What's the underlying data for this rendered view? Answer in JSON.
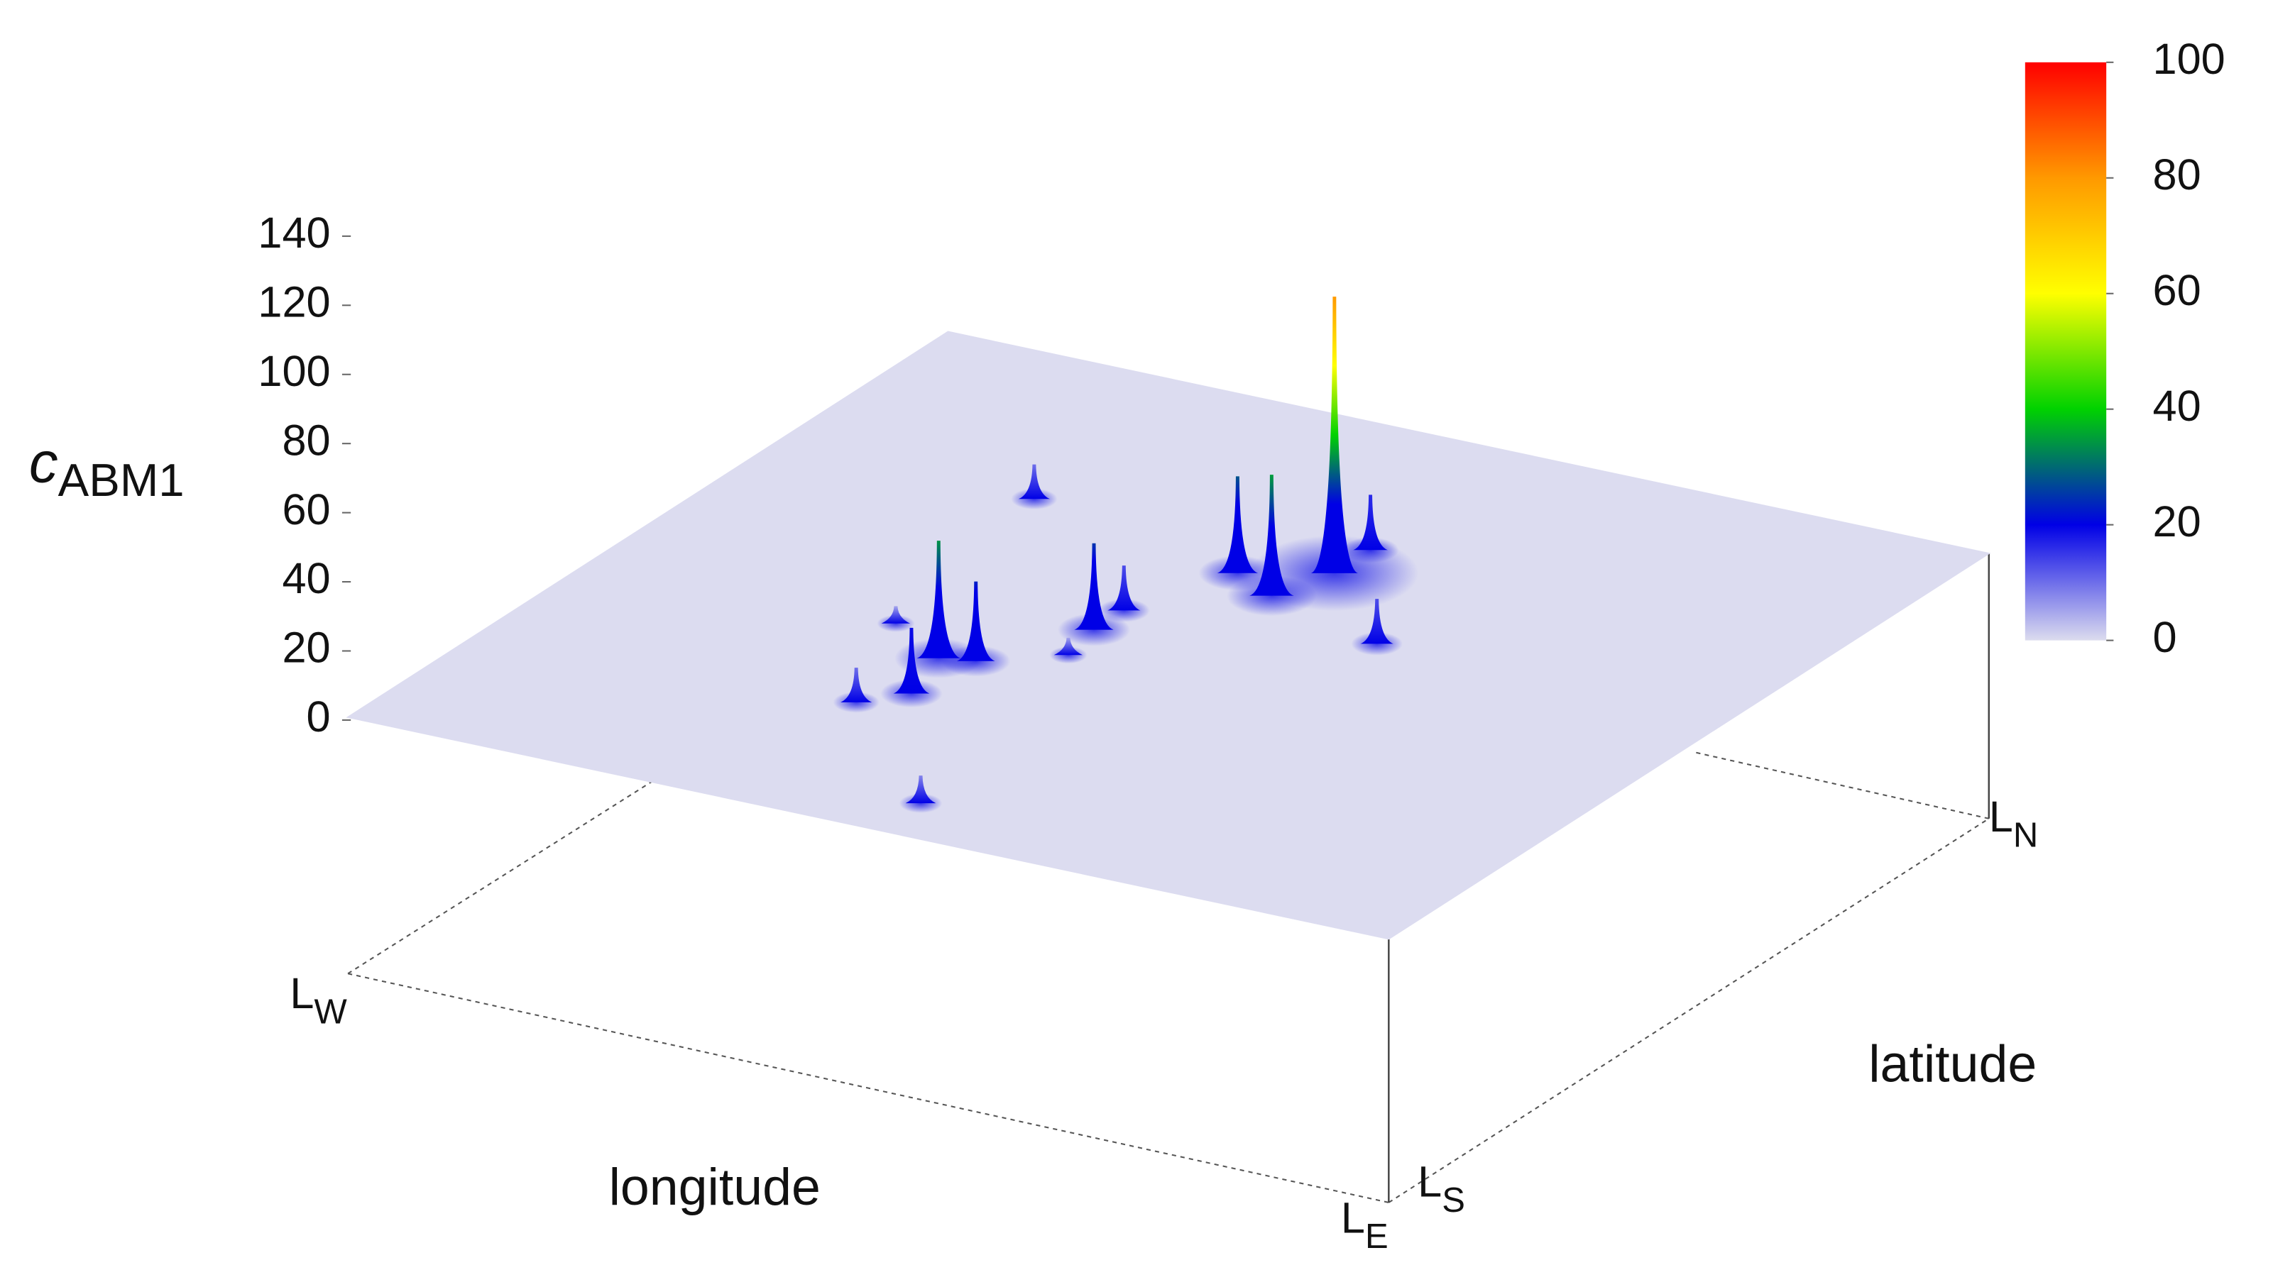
{
  "chart_data": {
    "type": "surface3d",
    "xlabel": "longitude",
    "ylabel": "latitude",
    "zlabel": {
      "main": "c",
      "sub": "ABM1"
    },
    "x_ends": [
      {
        "main": "L",
        "sub": "W"
      },
      {
        "main": "L",
        "sub": "E"
      }
    ],
    "y_ends": [
      {
        "main": "L",
        "sub": "S"
      },
      {
        "main": "L",
        "sub": "N"
      }
    ],
    "zlim": [
      0,
      140
    ],
    "zticks": [
      0,
      20,
      40,
      60,
      80,
      100,
      120,
      140
    ],
    "clim": [
      0,
      100
    ],
    "cticks": [
      0,
      20,
      40,
      60,
      80,
      100
    ],
    "colormap": [
      "#dcdcee",
      "#0000e6",
      "#00d200",
      "#ffff00",
      "#ff9900",
      "#ff0000"
    ],
    "surface_color": "#dcdcf0",
    "peaks": [
      {
        "x": 0.55,
        "y": 0.69,
        "z": 80
      },
      {
        "x": 0.48,
        "y": 0.65,
        "z": 28
      },
      {
        "x": 0.53,
        "y": 0.62,
        "z": 35
      },
      {
        "x": 0.55,
        "y": 0.75,
        "z": 16
      },
      {
        "x": 0.36,
        "y": 0.36,
        "z": 34
      },
      {
        "x": 0.39,
        "y": 0.37,
        "z": 23
      },
      {
        "x": 0.38,
        "y": 0.28,
        "z": 19
      },
      {
        "x": 0.35,
        "y": 0.24,
        "z": 10
      },
      {
        "x": 0.44,
        "y": 0.48,
        "z": 25
      },
      {
        "x": 0.44,
        "y": 0.53,
        "z": 13
      },
      {
        "x": 0.25,
        "y": 0.71,
        "z": 10
      },
      {
        "x": 0.66,
        "y": 0.57,
        "z": 13
      },
      {
        "x": 0.51,
        "y": 0.07,
        "z": 8
      },
      {
        "x": 0.45,
        "y": 0.42,
        "z": 5
      },
      {
        "x": 0.29,
        "y": 0.41,
        "z": 5
      }
    ]
  }
}
